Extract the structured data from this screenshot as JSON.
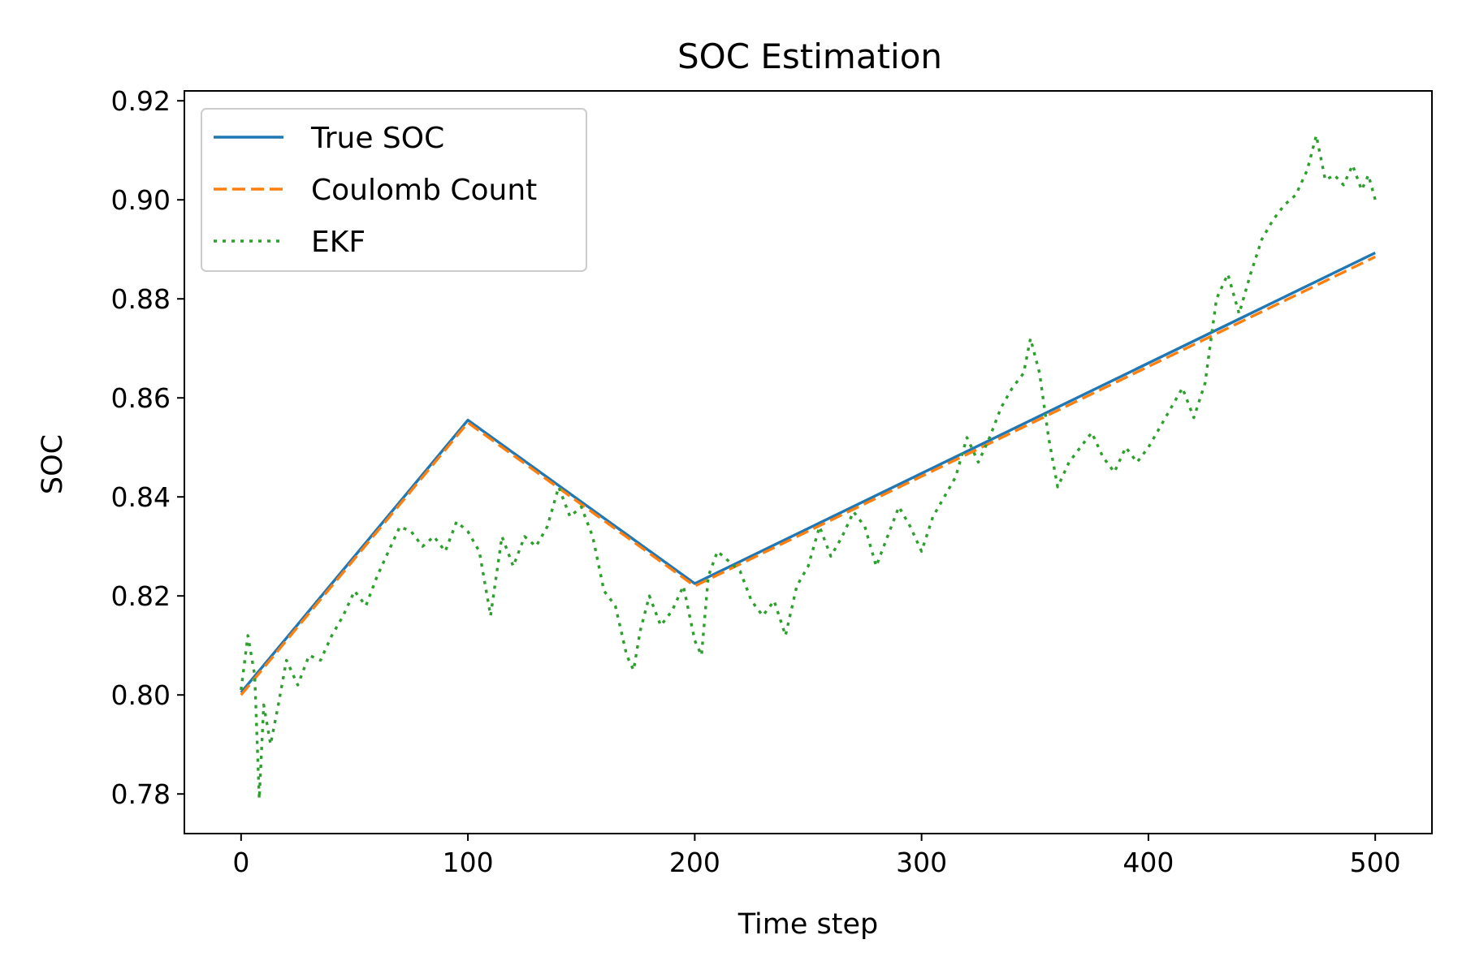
{
  "chart_data": {
    "type": "line",
    "title": "SOC Estimation",
    "xlabel": "Time step",
    "ylabel": "SOC",
    "xlim": [
      -25,
      525
    ],
    "ylim": [
      0.772,
      0.922
    ],
    "xticks": [
      0,
      100,
      200,
      300,
      400,
      500
    ],
    "xtick_labels": [
      "0",
      "100",
      "200",
      "300",
      "400",
      "500"
    ],
    "yticks": [
      0.78,
      0.8,
      0.82,
      0.84,
      0.86,
      0.88,
      0.9,
      0.92
    ],
    "ytick_labels": [
      "0.78",
      "0.80",
      "0.82",
      "0.84",
      "0.86",
      "0.88",
      "0.90",
      "0.92"
    ],
    "grid": false,
    "legend_position": "top-left",
    "series": [
      {
        "name": "True SOC",
        "color": "#1f77b4",
        "style": "solid",
        "x": [
          0,
          100,
          200,
          500
        ],
        "y": [
          0.8005,
          0.8555,
          0.8225,
          0.8893
        ]
      },
      {
        "name": "Coulomb Count",
        "color": "#ff7f0e",
        "style": "dashed",
        "x": [
          0,
          100,
          200,
          500
        ],
        "y": [
          0.8,
          0.855,
          0.822,
          0.8885
        ]
      },
      {
        "name": "EKF",
        "color": "#2ca02c",
        "style": "dotted",
        "x": [
          0,
          3,
          6,
          8,
          10,
          13,
          16,
          20,
          25,
          30,
          35,
          40,
          45,
          50,
          55,
          60,
          65,
          70,
          75,
          80,
          85,
          90,
          95,
          100,
          105,
          110,
          115,
          120,
          125,
          130,
          135,
          140,
          145,
          150,
          155,
          160,
          165,
          170,
          173,
          176,
          180,
          185,
          190,
          195,
          200,
          203,
          206,
          210,
          215,
          220,
          225,
          230,
          235,
          240,
          245,
          250,
          255,
          260,
          265,
          270,
          275,
          280,
          285,
          290,
          295,
          300,
          305,
          310,
          315,
          320,
          325,
          330,
          335,
          340,
          345,
          348,
          352,
          356,
          360,
          365,
          370,
          375,
          380,
          385,
          390,
          395,
          400,
          405,
          410,
          415,
          420,
          425,
          430,
          435,
          440,
          445,
          450,
          455,
          460,
          465,
          470,
          474,
          478,
          482,
          486,
          490,
          494,
          497,
          500
        ],
        "y": [
          0.801,
          0.812,
          0.804,
          0.779,
          0.798,
          0.79,
          0.797,
          0.807,
          0.802,
          0.808,
          0.807,
          0.812,
          0.816,
          0.821,
          0.818,
          0.824,
          0.829,
          0.834,
          0.833,
          0.83,
          0.832,
          0.829,
          0.835,
          0.833,
          0.829,
          0.816,
          0.832,
          0.826,
          0.832,
          0.83,
          0.834,
          0.842,
          0.836,
          0.838,
          0.832,
          0.821,
          0.818,
          0.808,
          0.805,
          0.813,
          0.82,
          0.814,
          0.817,
          0.822,
          0.811,
          0.808,
          0.824,
          0.829,
          0.827,
          0.825,
          0.819,
          0.816,
          0.819,
          0.812,
          0.822,
          0.826,
          0.834,
          0.828,
          0.832,
          0.837,
          0.834,
          0.826,
          0.832,
          0.838,
          0.834,
          0.829,
          0.836,
          0.84,
          0.844,
          0.852,
          0.847,
          0.852,
          0.858,
          0.862,
          0.865,
          0.872,
          0.865,
          0.852,
          0.842,
          0.847,
          0.85,
          0.853,
          0.848,
          0.845,
          0.85,
          0.847,
          0.85,
          0.854,
          0.858,
          0.862,
          0.856,
          0.863,
          0.88,
          0.885,
          0.877,
          0.885,
          0.892,
          0.896,
          0.899,
          0.901,
          0.906,
          0.913,
          0.904,
          0.905,
          0.903,
          0.907,
          0.902,
          0.905,
          0.9
        ]
      }
    ]
  }
}
